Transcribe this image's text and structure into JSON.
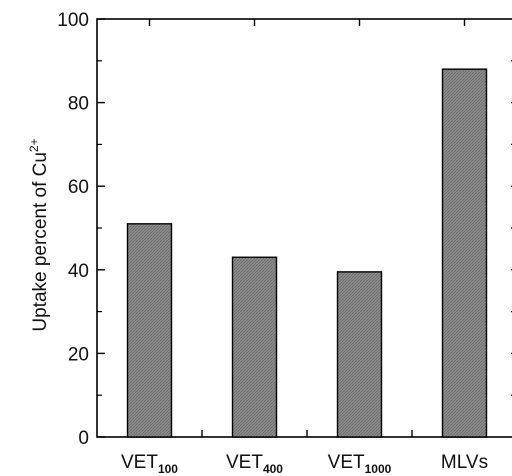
{
  "chart_data": {
    "type": "bar",
    "categories": [
      {
        "base": "VET",
        "sub": "100"
      },
      {
        "base": "VET",
        "sub": "400"
      },
      {
        "base": "VET",
        "sub": "1000"
      },
      {
        "base": "MLVs",
        "sub": ""
      }
    ],
    "values": [
      51,
      43,
      39.5,
      88
    ],
    "ylabel": "Uptake percent of Cu",
    "ylabel_superscript": "2+",
    "ylim": [
      0,
      100
    ],
    "yticks": [
      0,
      20,
      40,
      60,
      80,
      100
    ],
    "bar_fill": "#8c8c8c",
    "grid": false
  }
}
